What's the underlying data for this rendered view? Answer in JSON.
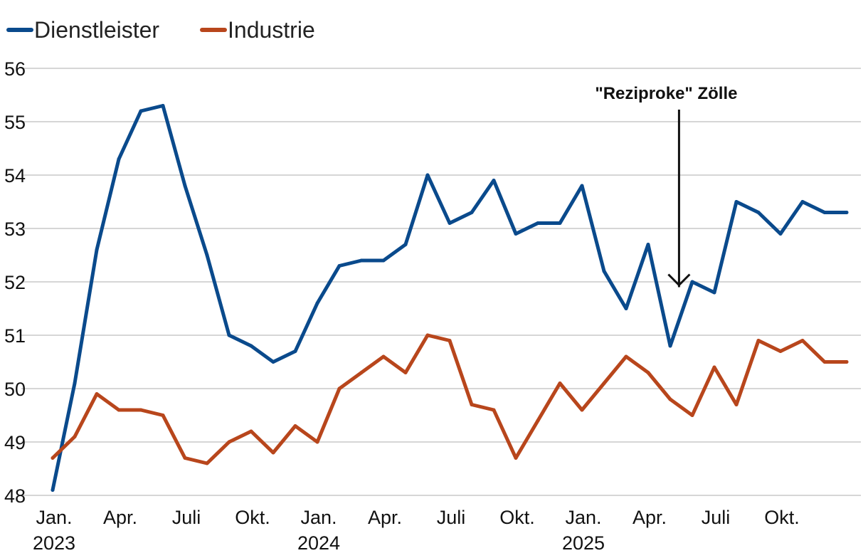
{
  "chart_data": {
    "type": "line",
    "ylim": [
      48,
      56
    ],
    "yticks": [
      "48",
      "49",
      "50",
      "51",
      "52",
      "53",
      "54",
      "55",
      "56"
    ],
    "xticks": [
      {
        "label": "Jan.",
        "year": "2023"
      },
      {
        "label": "Apr.",
        "year": ""
      },
      {
        "label": "Juli",
        "year": ""
      },
      {
        "label": "Okt.",
        "year": ""
      },
      {
        "label": "Jan.",
        "year": "2024"
      },
      {
        "label": "Apr.",
        "year": ""
      },
      {
        "label": "Juli",
        "year": ""
      },
      {
        "label": "Okt.",
        "year": ""
      },
      {
        "label": "Jan.",
        "year": "2025"
      },
      {
        "label": "Apr.",
        "year": ""
      },
      {
        "label": "Juli",
        "year": ""
      },
      {
        "label": "Okt.",
        "year": ""
      }
    ],
    "months": 36,
    "series": [
      {
        "name": "Dienstleister",
        "color": "#0a4a8c",
        "values": [
          48.1,
          50.1,
          52.6,
          54.3,
          55.2,
          55.3,
          53.8,
          52.5,
          51.0,
          50.8,
          50.5,
          50.7,
          51.6,
          52.3,
          52.4,
          52.4,
          52.7,
          54.0,
          53.1,
          53.3,
          53.9,
          52.9,
          53.1,
          53.1,
          53.8,
          52.2,
          51.5,
          52.7,
          50.8,
          52.0,
          51.8,
          53.5,
          53.3,
          52.9,
          53.5,
          53.3,
          53.3
        ]
      },
      {
        "name": "Industrie",
        "color": "#b8461c",
        "values": [
          48.7,
          49.1,
          49.9,
          49.6,
          49.6,
          49.5,
          48.7,
          48.6,
          49.0,
          49.2,
          48.8,
          49.3,
          49.0,
          50.0,
          50.3,
          50.6,
          50.3,
          51.0,
          50.9,
          49.7,
          49.6,
          48.7,
          49.4,
          50.1,
          49.6,
          50.1,
          50.6,
          50.3,
          49.8,
          49.5,
          50.4,
          49.7,
          50.9,
          50.7,
          50.9,
          50.5,
          50.5
        ]
      }
    ],
    "annotation": {
      "text": "\"Reziproke\" Zölle",
      "x_index": 28.4,
      "y_value": 51.9
    }
  }
}
